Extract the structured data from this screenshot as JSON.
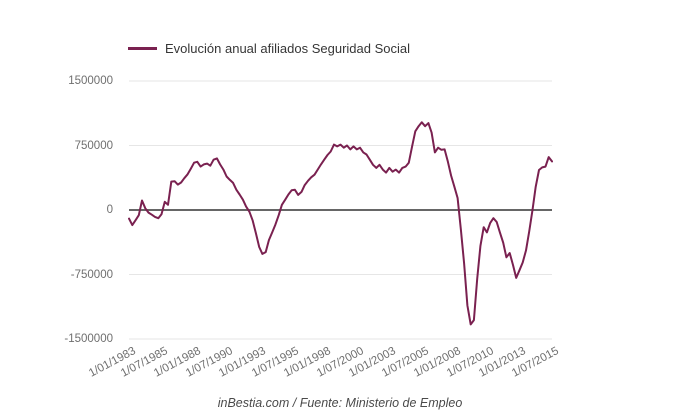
{
  "legend": {
    "label": "Evolución anual afiliados Seguridad Social"
  },
  "footer": {
    "credit": "inBestia.com / Fuente: Ministerio de Empleo"
  },
  "colors": {
    "line": "#7a2150",
    "grid": "#e6e6e6",
    "zero_axis": "#666666",
    "axis_label": "#6f6f6f",
    "legend_text": "#363636",
    "footer_text": "#4a4a4a",
    "background": "#ffffff"
  },
  "chart_data": {
    "type": "line",
    "title": "",
    "xlabel": "",
    "ylabel": "",
    "grid": true,
    "legend_position": "top",
    "xlim": [
      1983.0,
      2015.5
    ],
    "ylim": [
      -1500000,
      1500000
    ],
    "y_ticks": [
      {
        "value": 1500000,
        "label": "1500000"
      },
      {
        "value": 750000,
        "label": "750000"
      },
      {
        "value": 0,
        "label": "0"
      },
      {
        "value": -750000,
        "label": "-750000"
      },
      {
        "value": -1500000,
        "label": "-1500000"
      }
    ],
    "x_ticks": [
      {
        "value": 1983.0,
        "label": "1/01/1983"
      },
      {
        "value": 1985.5,
        "label": "1/07/1985"
      },
      {
        "value": 1988.0,
        "label": "1/01/1988"
      },
      {
        "value": 1990.5,
        "label": "1/07/1990"
      },
      {
        "value": 1993.0,
        "label": "1/01/1993"
      },
      {
        "value": 1995.5,
        "label": "1/07/1995"
      },
      {
        "value": 1998.0,
        "label": "1/01/1998"
      },
      {
        "value": 2000.5,
        "label": "1/07/2000"
      },
      {
        "value": 2003.0,
        "label": "1/01/2003"
      },
      {
        "value": 2005.5,
        "label": "1/07/2005"
      },
      {
        "value": 2008.0,
        "label": "1/01/2008"
      },
      {
        "value": 2010.5,
        "label": "1/07/2010"
      },
      {
        "value": 2013.0,
        "label": "1/01/2013"
      },
      {
        "value": 2015.5,
        "label": "1/07/2015"
      }
    ],
    "series": [
      {
        "name": "Evolución anual afiliados Seguridad Social",
        "color": "#7a2150",
        "x": [
          1983,
          1983.25,
          1983.5,
          1983.75,
          1984,
          1984.25,
          1984.5,
          1984.75,
          1985,
          1985.25,
          1985.5,
          1985.75,
          1986,
          1986.25,
          1986.5,
          1986.75,
          1987,
          1987.25,
          1987.5,
          1987.75,
          1988,
          1988.25,
          1988.5,
          1988.75,
          1989,
          1989.25,
          1989.5,
          1989.75,
          1990,
          1990.25,
          1990.5,
          1990.75,
          1991,
          1991.25,
          1991.5,
          1991.75,
          1992,
          1992.25,
          1992.5,
          1992.75,
          1993,
          1993.25,
          1993.5,
          1993.75,
          1994,
          1994.25,
          1994.5,
          1994.75,
          1995,
          1995.25,
          1995.5,
          1995.75,
          1996,
          1996.25,
          1996.5,
          1996.75,
          1997,
          1997.25,
          1997.5,
          1997.75,
          1998,
          1998.25,
          1998.5,
          1998.75,
          1999,
          1999.25,
          1999.5,
          1999.75,
          2000,
          2000.25,
          2000.5,
          2000.75,
          2001,
          2001.25,
          2001.5,
          2001.75,
          2002,
          2002.25,
          2002.5,
          2002.75,
          2003,
          2003.25,
          2003.5,
          2003.75,
          2004,
          2004.25,
          2004.5,
          2004.75,
          2005,
          2005.25,
          2005.5,
          2005.75,
          2006,
          2006.25,
          2006.5,
          2006.75,
          2007,
          2007.25,
          2007.5,
          2007.75,
          2008,
          2008.25,
          2008.5,
          2008.75,
          2009,
          2009.25,
          2009.5,
          2009.75,
          2010,
          2010.25,
          2010.5,
          2010.75,
          2011,
          2011.25,
          2011.5,
          2011.75,
          2012,
          2012.25,
          2012.5,
          2012.75,
          2013,
          2013.25,
          2013.5,
          2013.75,
          2014,
          2014.25,
          2014.5,
          2014.75,
          2015,
          2015.25,
          2015.5
        ],
        "y": [
          -100000,
          -175000,
          -120000,
          -60000,
          110000,
          20000,
          -30000,
          -55000,
          -80000,
          -95000,
          -50000,
          95000,
          60000,
          330000,
          335000,
          295000,
          320000,
          370000,
          415000,
          480000,
          550000,
          560000,
          505000,
          530000,
          540000,
          515000,
          585000,
          600000,
          530000,
          470000,
          390000,
          350000,
          315000,
          235000,
          180000,
          120000,
          40000,
          -20000,
          -120000,
          -270000,
          -430000,
          -510000,
          -490000,
          -350000,
          -260000,
          -170000,
          -60000,
          60000,
          120000,
          180000,
          230000,
          235000,
          175000,
          210000,
          290000,
          340000,
          380000,
          410000,
          470000,
          530000,
          585000,
          640000,
          680000,
          760000,
          740000,
          760000,
          725000,
          750000,
          705000,
          740000,
          705000,
          725000,
          670000,
          645000,
          585000,
          525000,
          490000,
          525000,
          470000,
          435000,
          490000,
          445000,
          470000,
          435000,
          490000,
          505000,
          550000,
          740000,
          915000,
          975000,
          1020000,
          975000,
          1010000,
          900000,
          670000,
          725000,
          700000,
          705000,
          560000,
          400000,
          270000,
          140000,
          -230000,
          -620000,
          -1110000,
          -1330000,
          -1280000,
          -800000,
          -420000,
          -200000,
          -260000,
          -150000,
          -95000,
          -140000,
          -260000,
          -380000,
          -550000,
          -500000,
          -640000,
          -790000,
          -700000,
          -610000,
          -470000,
          -250000,
          0,
          270000,
          465000,
          495000,
          505000,
          615000,
          565000
        ]
      }
    ]
  }
}
